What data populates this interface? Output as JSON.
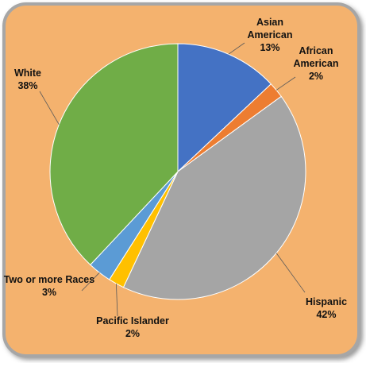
{
  "chart_data": {
    "type": "pie",
    "title": "",
    "start_angle_deg": 0,
    "direction": "clockwise",
    "slices": [
      {
        "label": "Asian American",
        "label_lines": [
          "Asian",
          "American"
        ],
        "value": 13,
        "value_text": "13%",
        "color": "#4472C4"
      },
      {
        "label": "African American",
        "label_lines": [
          "African",
          "American"
        ],
        "value": 2,
        "value_text": "2%",
        "color": "#ED7D31"
      },
      {
        "label": "Hispanic",
        "label_lines": [
          "Hispanic"
        ],
        "value": 42,
        "value_text": "42%",
        "color": "#A5A5A5"
      },
      {
        "label": "Pacific Islander",
        "label_lines": [
          "Pacific Islander"
        ],
        "value": 2,
        "value_text": "2%",
        "color": "#FFC000"
      },
      {
        "label": "Two or more Races",
        "label_lines": [
          "Two or more Races"
        ],
        "value": 3,
        "value_text": "3%",
        "color": "#5B9BD5"
      },
      {
        "label": "White",
        "label_lines": [
          "White"
        ],
        "value": 38,
        "value_text": "38%",
        "color": "#70AD47"
      }
    ],
    "legend": "none",
    "labels": "outside with leader lines",
    "background_color": "#F4B26E",
    "border_color": "#A6A6A6"
  }
}
